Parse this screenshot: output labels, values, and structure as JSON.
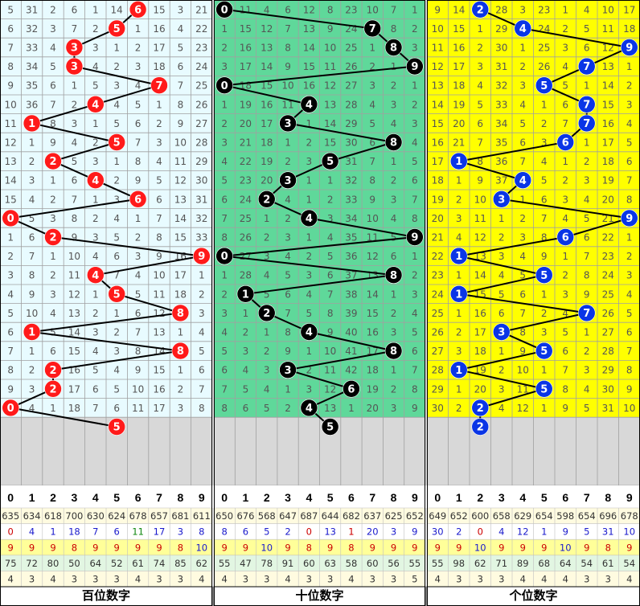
{
  "chart_data": {
    "type": "table",
    "titles": [
      "百位数字",
      "十位数字",
      "个位数字"
    ],
    "column_headers": [
      "0",
      "1",
      "2",
      "3",
      "4",
      "5",
      "6",
      "7",
      "8",
      "9"
    ],
    "colors": {
      "hundreds_bg": "#e8fbff",
      "hundreds_ball": "#ff1a1a",
      "tens_bg": "#5fd89a",
      "tens_ball": "#000000",
      "units_bg": "#ffff00",
      "units_ball": "#0a35e6",
      "grid_line": "#a0a0a0",
      "empty_row": "#d8d8d8"
    },
    "panels": [
      {
        "name": "hundreds",
        "rows": [
          [
            "5",
            "31",
            "2",
            "6",
            "1",
            "14",
            "6",
            "15",
            "3",
            "21"
          ],
          [
            "6",
            "32",
            "3",
            "7",
            "2",
            "5",
            "1",
            "16",
            "4",
            "22"
          ],
          [
            "7",
            "33",
            "4",
            "3",
            "3",
            "1",
            "2",
            "17",
            "5",
            "23"
          ],
          [
            "8",
            "34",
            "5",
            "3",
            "4",
            "2",
            "3",
            "18",
            "6",
            "24"
          ],
          [
            "9",
            "35",
            "6",
            "1",
            "5",
            "3",
            "4",
            "7",
            "7",
            "25"
          ],
          [
            "10",
            "36",
            "7",
            "2",
            "4",
            "4",
            "5",
            "1",
            "8",
            "26"
          ],
          [
            "11",
            "1",
            "8",
            "3",
            "1",
            "5",
            "6",
            "2",
            "9",
            "27"
          ],
          [
            "12",
            "1",
            "9",
            "4",
            "2",
            "5",
            "7",
            "3",
            "10",
            "28"
          ],
          [
            "13",
            "2",
            "2",
            "5",
            "3",
            "1",
            "8",
            "4",
            "11",
            "29"
          ],
          [
            "14",
            "3",
            "1",
            "6",
            "4",
            "2",
            "9",
            "5",
            "12",
            "30"
          ],
          [
            "15",
            "4",
            "2",
            "7",
            "1",
            "3",
            "6",
            "6",
            "13",
            "31"
          ],
          [
            "0",
            "5",
            "3",
            "8",
            "2",
            "4",
            "1",
            "7",
            "14",
            "32"
          ],
          [
            "1",
            "6",
            "2",
            "9",
            "3",
            "5",
            "2",
            "8",
            "15",
            "33"
          ],
          [
            "2",
            "7",
            "1",
            "10",
            "4",
            "6",
            "3",
            "9",
            "16",
            "9"
          ],
          [
            "3",
            "8",
            "2",
            "11",
            "4",
            "7",
            "4",
            "10",
            "17",
            "1"
          ],
          [
            "4",
            "9",
            "3",
            "12",
            "1",
            "5",
            "5",
            "11",
            "18",
            "2"
          ],
          [
            "5",
            "10",
            "4",
            "13",
            "2",
            "1",
            "6",
            "12",
            "8",
            "3"
          ],
          [
            "6",
            "1",
            "5",
            "14",
            "3",
            "2",
            "7",
            "13",
            "1",
            "4"
          ],
          [
            "7",
            "1",
            "6",
            "15",
            "4",
            "3",
            "8",
            "14",
            "8",
            "5"
          ],
          [
            "8",
            "2",
            "2",
            "16",
            "5",
            "4",
            "9",
            "15",
            "1",
            "6"
          ],
          [
            "9",
            "3",
            "2",
            "17",
            "6",
            "5",
            "10",
            "16",
            "2",
            "7"
          ],
          [
            "0",
            "4",
            "1",
            "18",
            "7",
            "6",
            "11",
            "17",
            "3",
            "8"
          ]
        ],
        "winners": [
          6,
          5,
          3,
          3,
          7,
          4,
          1,
          5,
          2,
          4,
          6,
          0,
          2,
          9,
          4,
          5,
          8,
          1,
          8,
          2,
          2,
          0,
          5
        ]
      },
      {
        "name": "tens",
        "rows": [
          [
            "0",
            "11",
            "4",
            "6",
            "12",
            "8",
            "23",
            "10",
            "7",
            "1"
          ],
          [
            "1",
            "15",
            "12",
            "7",
            "13",
            "9",
            "24",
            "7",
            "8",
            "2"
          ],
          [
            "2",
            "16",
            "13",
            "8",
            "14",
            "10",
            "25",
            "1",
            "8",
            "3"
          ],
          [
            "3",
            "17",
            "14",
            "9",
            "15",
            "11",
            "26",
            "2",
            "1",
            "9"
          ],
          [
            "0",
            "18",
            "15",
            "10",
            "16",
            "12",
            "27",
            "3",
            "2",
            "1"
          ],
          [
            "1",
            "19",
            "16",
            "11",
            "4",
            "13",
            "28",
            "4",
            "3",
            "2"
          ],
          [
            "2",
            "20",
            "17",
            "3",
            "1",
            "14",
            "29",
            "5",
            "4",
            "3"
          ],
          [
            "3",
            "21",
            "18",
            "1",
            "2",
            "15",
            "30",
            "6",
            "8",
            "4"
          ],
          [
            "4",
            "22",
            "19",
            "2",
            "3",
            "5",
            "31",
            "7",
            "1",
            "5"
          ],
          [
            "5",
            "23",
            "20",
            "3",
            "1",
            "1",
            "32",
            "8",
            "2",
            "6"
          ],
          [
            "6",
            "24",
            "2",
            "4",
            "1",
            "2",
            "33",
            "9",
            "3",
            "7"
          ],
          [
            "7",
            "25",
            "1",
            "2",
            "4",
            "3",
            "34",
            "10",
            "4",
            "8"
          ],
          [
            "8",
            "26",
            "2",
            "3",
            "1",
            "4",
            "35",
            "11",
            "5",
            "9"
          ],
          [
            "0",
            "27",
            "3",
            "4",
            "2",
            "5",
            "36",
            "12",
            "6",
            "1"
          ],
          [
            "1",
            "28",
            "4",
            "5",
            "3",
            "6",
            "37",
            "13",
            "8",
            "2"
          ],
          [
            "2",
            "1",
            "5",
            "6",
            "4",
            "7",
            "38",
            "14",
            "1",
            "3"
          ],
          [
            "3",
            "1",
            "2",
            "7",
            "5",
            "8",
            "39",
            "15",
            "2",
            "4"
          ],
          [
            "4",
            "2",
            "1",
            "8",
            "4",
            "9",
            "40",
            "16",
            "3",
            "5"
          ],
          [
            "5",
            "3",
            "2",
            "9",
            "1",
            "10",
            "41",
            "17",
            "8",
            "6"
          ],
          [
            "6",
            "4",
            "3",
            "3",
            "2",
            "11",
            "42",
            "18",
            "1",
            "7"
          ],
          [
            "7",
            "5",
            "4",
            "1",
            "3",
            "12",
            "6",
            "19",
            "2",
            "8"
          ],
          [
            "8",
            "6",
            "5",
            "2",
            "4",
            "13",
            "1",
            "20",
            "3",
            "9"
          ]
        ],
        "winners": [
          0,
          7,
          8,
          9,
          0,
          4,
          3,
          8,
          5,
          3,
          2,
          4,
          9,
          0,
          8,
          1,
          2,
          4,
          8,
          3,
          6,
          4,
          5
        ]
      },
      {
        "name": "units",
        "rows": [
          [
            "9",
            "14",
            "2",
            "28",
            "3",
            "23",
            "1",
            "4",
            "10",
            "17"
          ],
          [
            "10",
            "15",
            "1",
            "29",
            "4",
            "24",
            "2",
            "5",
            "11",
            "18"
          ],
          [
            "11",
            "16",
            "2",
            "30",
            "1",
            "25",
            "3",
            "6",
            "12",
            "9"
          ],
          [
            "12",
            "17",
            "3",
            "31",
            "2",
            "26",
            "4",
            "7",
            "13",
            "1"
          ],
          [
            "13",
            "18",
            "4",
            "32",
            "3",
            "5",
            "5",
            "1",
            "14",
            "2"
          ],
          [
            "14",
            "19",
            "5",
            "33",
            "4",
            "1",
            "6",
            "7",
            "15",
            "3"
          ],
          [
            "15",
            "20",
            "6",
            "34",
            "5",
            "2",
            "7",
            "7",
            "16",
            "4"
          ],
          [
            "16",
            "21",
            "7",
            "35",
            "6",
            "3",
            "6",
            "1",
            "17",
            "5"
          ],
          [
            "17",
            "1",
            "8",
            "36",
            "7",
            "4",
            "1",
            "2",
            "18",
            "6"
          ],
          [
            "18",
            "1",
            "9",
            "37",
            "4",
            "5",
            "2",
            "3",
            "19",
            "7"
          ],
          [
            "19",
            "2",
            "10",
            "3",
            "1",
            "6",
            "3",
            "4",
            "20",
            "8"
          ],
          [
            "20",
            "3",
            "11",
            "1",
            "2",
            "7",
            "4",
            "5",
            "21",
            "9"
          ],
          [
            "21",
            "4",
            "12",
            "2",
            "3",
            "8",
            "6",
            "6",
            "22",
            "1"
          ],
          [
            "22",
            "1",
            "13",
            "3",
            "4",
            "9",
            "1",
            "7",
            "23",
            "2"
          ],
          [
            "23",
            "1",
            "14",
            "4",
            "5",
            "5",
            "2",
            "8",
            "24",
            "3"
          ],
          [
            "24",
            "1",
            "15",
            "5",
            "6",
            "1",
            "3",
            "9",
            "25",
            "4"
          ],
          [
            "25",
            "1",
            "16",
            "6",
            "7",
            "2",
            "4",
            "7",
            "26",
            "5"
          ],
          [
            "26",
            "2",
            "17",
            "3",
            "8",
            "3",
            "5",
            "1",
            "27",
            "6"
          ],
          [
            "27",
            "3",
            "18",
            "1",
            "9",
            "5",
            "6",
            "2",
            "28",
            "7"
          ],
          [
            "28",
            "1",
            "19",
            "2",
            "10",
            "1",
            "7",
            "3",
            "29",
            "8"
          ],
          [
            "29",
            "1",
            "20",
            "3",
            "11",
            "5",
            "8",
            "4",
            "30",
            "9"
          ],
          [
            "30",
            "2",
            "2",
            "4",
            "12",
            "1",
            "9",
            "5",
            "31",
            "10"
          ]
        ],
        "winners": [
          2,
          4,
          9,
          7,
          5,
          7,
          7,
          6,
          1,
          4,
          3,
          9,
          6,
          1,
          5,
          1,
          7,
          3,
          5,
          1,
          5,
          2,
          2
        ]
      }
    ],
    "stats": [
      [
        [
          "635",
          "634",
          "618",
          "700",
          "630",
          "624",
          "678",
          "657",
          "681",
          "611"
        ],
        [
          "0",
          "4",
          "1",
          "18",
          "7",
          "6",
          "11",
          "17",
          "3",
          "8"
        ],
        [
          "9",
          "9",
          "9",
          "8",
          "9",
          "9",
          "9",
          "9",
          "8",
          "10"
        ],
        [
          "75",
          "72",
          "80",
          "50",
          "64",
          "52",
          "61",
          "74",
          "85",
          "62"
        ],
        [
          "4",
          "3",
          "4",
          "3",
          "3",
          "3",
          "4",
          "3",
          "3",
          "4"
        ]
      ],
      [
        [
          "650",
          "676",
          "568",
          "647",
          "687",
          "644",
          "682",
          "637",
          "625",
          "652"
        ],
        [
          "8",
          "6",
          "5",
          "2",
          "0",
          "13",
          "1",
          "20",
          "3",
          "9"
        ],
        [
          "9",
          "9",
          "10",
          "9",
          "8",
          "9",
          "8",
          "9",
          "9",
          "9"
        ],
        [
          "55",
          "47",
          "78",
          "91",
          "60",
          "63",
          "58",
          "60",
          "56",
          "55"
        ],
        [
          "4",
          "3",
          "3",
          "4",
          "3",
          "3",
          "4",
          "3",
          "3",
          "5"
        ]
      ],
      [
        [
          "649",
          "652",
          "600",
          "658",
          "629",
          "654",
          "598",
          "654",
          "696",
          "678"
        ],
        [
          "30",
          "2",
          "0",
          "4",
          "12",
          "1",
          "9",
          "5",
          "31",
          "10"
        ],
        [
          "9",
          "9",
          "10",
          "9",
          "9",
          "9",
          "10",
          "9",
          "8",
          "9"
        ],
        [
          "55",
          "98",
          "62",
          "71",
          "89",
          "68",
          "64",
          "54",
          "61",
          "54"
        ],
        [
          "4",
          "3",
          "3",
          "3",
          "4",
          "4",
          "4",
          "3",
          "3",
          "4"
        ]
      ]
    ]
  }
}
